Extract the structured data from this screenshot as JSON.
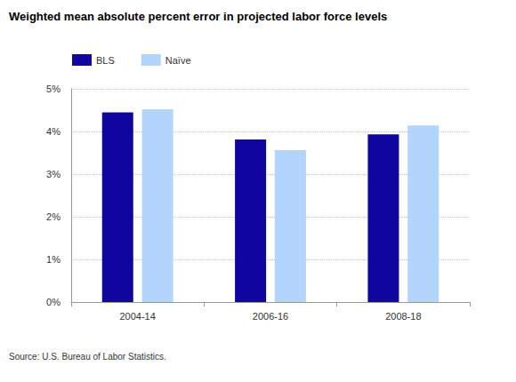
{
  "chart_data": {
    "type": "bar",
    "title": "Weighted mean absolute percent error in projected labor force levels",
    "categories": [
      "2004-14",
      "2006-16",
      "2008-18"
    ],
    "series": [
      {
        "name": "BLS",
        "color": "#10069f",
        "values": [
          4.45,
          3.81,
          3.93
        ]
      },
      {
        "name": "Naïve",
        "color": "#b3d4fc",
        "values": [
          4.52,
          3.56,
          4.14
        ]
      }
    ],
    "ylim": [
      0,
      5
    ],
    "yticks": [
      {
        "value": 0,
        "label": "0%"
      },
      {
        "value": 1,
        "label": "1%"
      },
      {
        "value": 2,
        "label": "2%"
      },
      {
        "value": 3,
        "label": "3%"
      },
      {
        "value": 4,
        "label": "4%"
      },
      {
        "value": 5,
        "label": "5%"
      }
    ],
    "grid": true,
    "legend": "top-left",
    "annotations": [
      "Source: U.S. Bureau of Labor Statistics."
    ]
  }
}
